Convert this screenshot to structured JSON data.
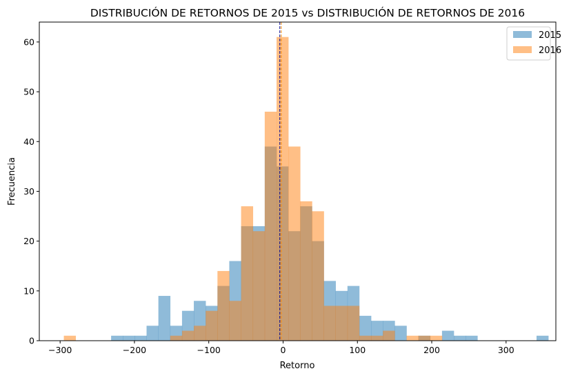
{
  "chart_data": {
    "type": "bar",
    "subtype": "overlaid-histogram",
    "title": "DISTRIBUCIÓN DE RETORNOS DE 2015 vs DISTRIBUCIÓN DE RETORNOS DE 2016",
    "xlabel": "Retorno",
    "ylabel": "Frecuencia",
    "xlim": [
      -328,
      367
    ],
    "ylim": [
      0,
      64
    ],
    "xticks": [
      -300,
      -200,
      -100,
      0,
      100,
      200,
      300
    ],
    "xtick_labels": [
      "−300",
      "−200",
      "−100",
      "0",
      "100",
      "200",
      "300"
    ],
    "yticks": [
      0,
      10,
      20,
      30,
      40,
      50,
      60
    ],
    "ytick_labels": [
      "0",
      "10",
      "20",
      "30",
      "40",
      "50",
      "60"
    ],
    "grid": false,
    "legend_position": "upper right",
    "bin_start": -295,
    "bin_width": 15.9,
    "bin_count": 41,
    "series": [
      {
        "name": "2015",
        "color": "#1f77b4",
        "alpha": 0.5,
        "mean": -4.4,
        "mean_line_color": "#00008b",
        "values": [
          0,
          0,
          0,
          0,
          1,
          1,
          1,
          3,
          9,
          3,
          6,
          8,
          7,
          11,
          16,
          23,
          23,
          39,
          35,
          22,
          27,
          20,
          12,
          10,
          11,
          5,
          4,
          4,
          3,
          0,
          1,
          0,
          2,
          1,
          1,
          0,
          0,
          0,
          0,
          0,
          1
        ]
      },
      {
        "name": "2016",
        "color": "#ff7f0e",
        "alpha": 0.5,
        "mean": -2.5,
        "mean_line_color": "#ff8c00",
        "values": [
          1,
          0,
          0,
          0,
          0,
          0,
          0,
          0,
          0,
          1,
          2,
          3,
          6,
          14,
          8,
          27,
          22,
          46,
          61,
          39,
          28,
          26,
          7,
          7,
          7,
          1,
          1,
          2,
          0,
          1,
          1,
          1,
          0,
          0,
          0,
          0,
          0,
          0,
          0,
          0,
          0
        ]
      }
    ]
  }
}
